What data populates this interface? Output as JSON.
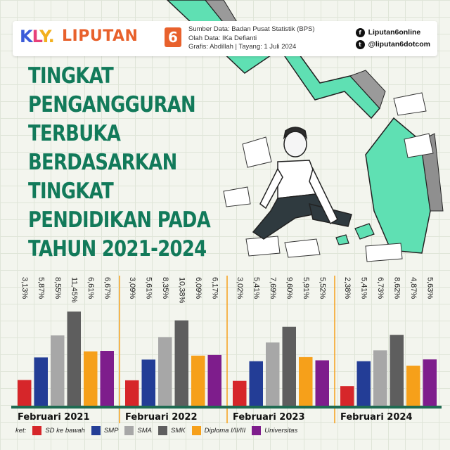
{
  "header": {
    "logo_kly": {
      "k": "K",
      "l": "L",
      "y": "Y."
    },
    "logo_liputan": "LIPUTAN",
    "logo_six": "6",
    "credits": [
      "Sumber Data: Badan Pusat Statistik (BPS)",
      "Olah Data: IKa Defianti",
      "Grafis: Abdillah | Tayang: 1 Juli 2024"
    ],
    "social": {
      "facebook": "Liputan6online",
      "twitter": "@liputan6dotcom",
      "facebook_icon": "f",
      "twitter_icon": "t"
    }
  },
  "title_lines": [
    "TINGKAT",
    "PENGANGGURAN",
    "TERBUKA",
    "BERDASARKAN",
    "TINGKAT",
    "PENDIDIKAN PADA",
    "TAHUN 2021-2024"
  ],
  "colors": {
    "accent": "#127a5a",
    "mint": "#5fe0b3",
    "SD ke bawah": "#d6262a",
    "SMP": "#233d96",
    "SMA": "#a7a7a7",
    "SMK": "#5e5e5e",
    "Diploma I/II/III": "#f6a01a",
    "Universitas": "#7e1d8c"
  },
  "legend_label": "ket:",
  "chart_data": {
    "type": "bar",
    "title": "TINGKAT PENGANGGURAN TERBUKA BERDASARKAN TINGKAT PENDIDIKAN PADA TAHUN 2021-2024",
    "categories": [
      "Februari 2021",
      "Februari 2022",
      "Februari 2023",
      "Februari 2024"
    ],
    "series": [
      {
        "name": "SD ke bawah",
        "values": [
          3.13,
          3.09,
          3.02,
          2.38
        ],
        "labels": [
          "3,13%",
          "3,09%",
          "3,02%",
          "2,38%"
        ]
      },
      {
        "name": "SMP",
        "values": [
          5.87,
          5.61,
          5.41,
          5.41
        ],
        "labels": [
          "5,87%",
          "5,61%",
          "5,41%",
          "5,41%"
        ]
      },
      {
        "name": "SMA",
        "values": [
          8.55,
          8.35,
          7.69,
          6.73
        ],
        "labels": [
          "8,55%",
          "8,35%",
          "7,69%",
          "6,73%"
        ]
      },
      {
        "name": "SMK",
        "values": [
          11.45,
          10.38,
          9.6,
          8.62
        ],
        "labels": [
          "11,45%",
          "10,38%",
          "9,60%",
          "8,62%"
        ]
      },
      {
        "name": "Diploma I/II/III",
        "values": [
          6.61,
          6.09,
          5.91,
          4.87
        ],
        "labels": [
          "6,61%",
          "6,09%",
          "5,91%",
          "4,87%"
        ]
      },
      {
        "name": "Universitas",
        "values": [
          6.67,
          6.17,
          5.52,
          5.63
        ],
        "labels": [
          "6,67%",
          "6,17%",
          "5,52%",
          "5,63%"
        ]
      }
    ],
    "ylim": [
      0,
      13
    ],
    "legend_position": "bottom-left"
  }
}
